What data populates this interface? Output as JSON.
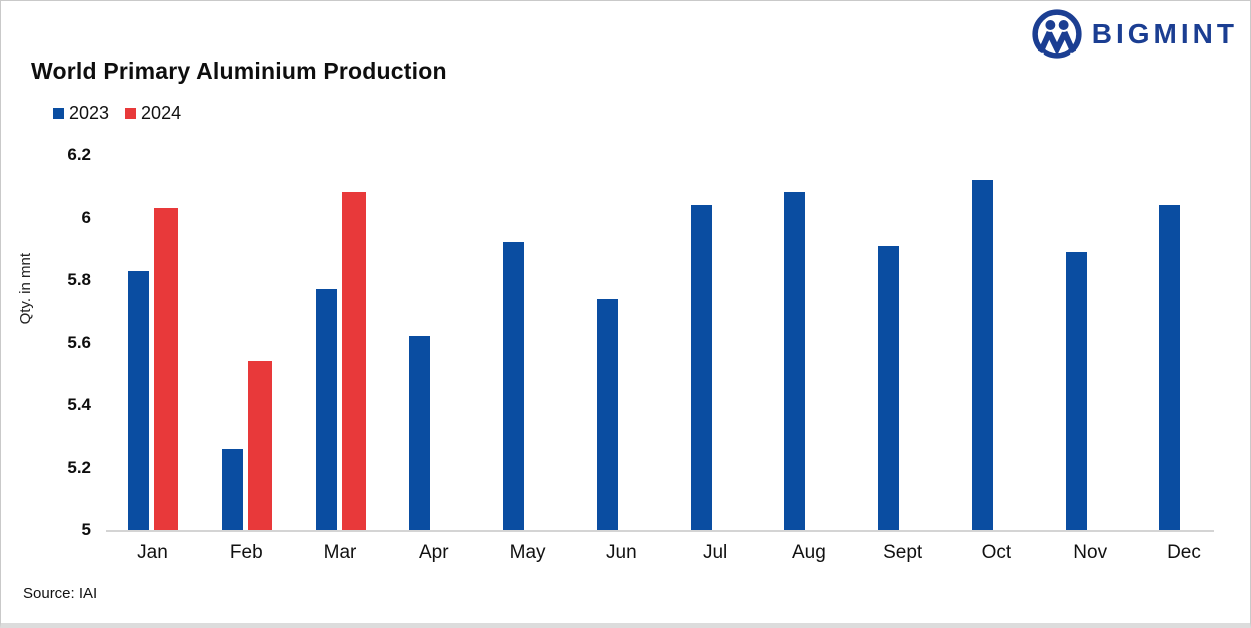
{
  "header": {
    "title": "World Primary Aluminium Production",
    "logo_text": "BIGMINT"
  },
  "footer": {
    "source": "Source: IAI"
  },
  "axes": {
    "y_label": "Qty. in mnt",
    "y_ticks": [
      "6.2",
      "6",
      "5.8",
      "5.6",
      "5.4",
      "5.2",
      "5"
    ]
  },
  "colors": {
    "series_2023": "#0a4da1",
    "series_2024": "#e8393a",
    "logo_navy": "#1b3e92",
    "baseline_gray": "#d4d4d4"
  },
  "chart_data": {
    "type": "bar",
    "title": "World Primary Aluminium Production",
    "xlabel": "",
    "ylabel": "Qty. in mnt",
    "ylim": [
      5,
      6.2
    ],
    "y_tick_step": 0.2,
    "grid": false,
    "legend_position": "top-left",
    "categories": [
      "Jan",
      "Feb",
      "Mar",
      "Apr",
      "May",
      "Jun",
      "Jul",
      "Aug",
      "Sept",
      "Oct",
      "Nov",
      "Dec"
    ],
    "series": [
      {
        "name": "2023",
        "color": "#0a4da1",
        "values": [
          5.83,
          5.26,
          5.77,
          5.62,
          5.92,
          5.74,
          6.04,
          6.08,
          5.91,
          6.12,
          5.89,
          6.04
        ]
      },
      {
        "name": "2024",
        "color": "#e8393a",
        "values": [
          6.03,
          5.54,
          6.08,
          null,
          null,
          null,
          null,
          null,
          null,
          null,
          null,
          null
        ]
      }
    ]
  }
}
